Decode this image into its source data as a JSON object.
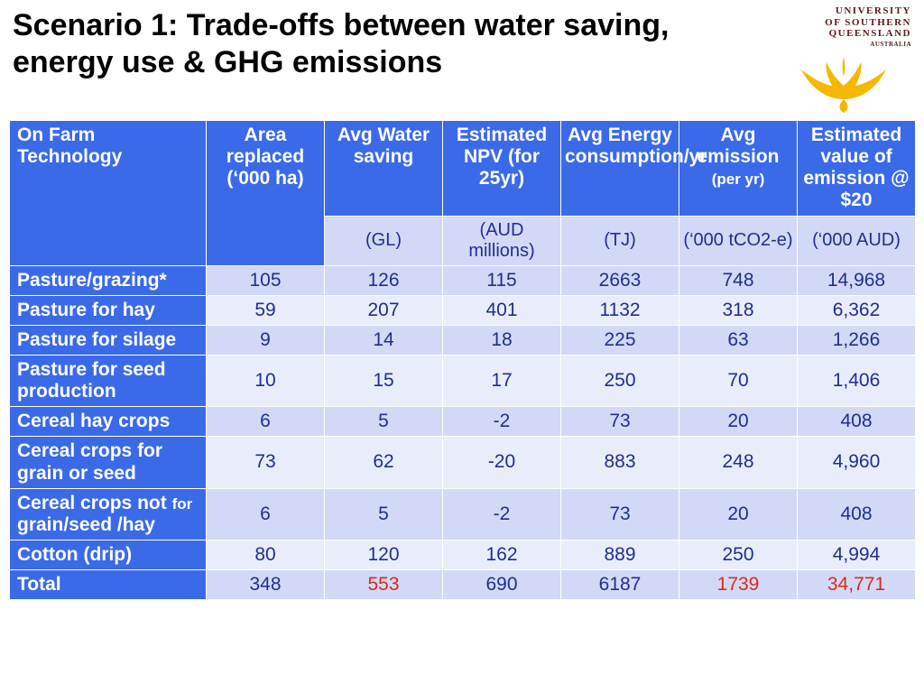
{
  "title": "Scenario 1: Trade-offs between water saving, energy use & GHG emissions",
  "logo": {
    "line1": "UNIVERSITY",
    "line2": "OF SOUTHERN",
    "line3": "QUEENSLAND",
    "sub": "AUSTRALIA",
    "phoenix_color": "#f5b800",
    "text_color": "#5a1a1a"
  },
  "table": {
    "type": "table",
    "header_bg": "#3a6ae8",
    "header_fg": "#ffffff",
    "unit_bg": "#d2d9f6",
    "value_fg": "#1e2f8f",
    "highlight_fg": "#d92a1c",
    "zebra": [
      "#d2d9f6",
      "#e9edfb"
    ],
    "columns": [
      {
        "label": "On Farm Technology",
        "unit": ""
      },
      {
        "label": "Area replaced (‘000 ha)",
        "unit": ""
      },
      {
        "label": "Avg Water saving",
        "unit": "(GL)"
      },
      {
        "label": "Estimated  NPV (for 25yr)",
        "unit": "(AUD millions)"
      },
      {
        "label": "Avg Energy consumption/yr",
        "unit": "(TJ)"
      },
      {
        "label": "Avg emission (per yr)",
        "unit": "(‘000 tCO2-e)",
        "label_small_suffix": true
      },
      {
        "label": "Estimated value of emission @ $20",
        "unit": "(‘000 AUD)"
      }
    ],
    "rows": [
      {
        "label": "Pasture/grazing*",
        "cells": [
          "105",
          "126",
          "115",
          "2663",
          "748",
          "14,968"
        ]
      },
      {
        "label": "Pasture for hay",
        "cells": [
          "59",
          "207",
          "401",
          "1132",
          "318",
          "6,362"
        ]
      },
      {
        "label": "Pasture for silage",
        "cells": [
          "9",
          "14",
          "18",
          "225",
          "63",
          "1,266"
        ]
      },
      {
        "label": "Pasture for seed production",
        "cells": [
          "10",
          "15",
          "17",
          "250",
          "70",
          "1,406"
        ]
      },
      {
        "label": "Cereal hay crops",
        "cells": [
          "6",
          "5",
          "-2",
          "73",
          "20",
          "408"
        ]
      },
      {
        "label": "Cereal crops for grain or seed",
        "cells": [
          "73",
          "62",
          "-20",
          "883",
          "248",
          "4,960"
        ]
      },
      {
        "label": "Cereal crops not for grain/seed /hay",
        "cells": [
          "6",
          "5",
          "-2",
          "73",
          "20",
          "408"
        ],
        "label_html": "Cereal crops not <span class=\"sm\">for</span> grain/seed /hay"
      },
      {
        "label": "Cotton (drip)",
        "cells": [
          "80",
          "120",
          "162",
          "889",
          "250",
          "4,994"
        ]
      },
      {
        "label": "Total",
        "cells": [
          "348",
          "553",
          "690",
          "6187",
          "1739",
          "34,771"
        ],
        "red_cols": [
          1,
          4,
          5
        ]
      }
    ]
  }
}
